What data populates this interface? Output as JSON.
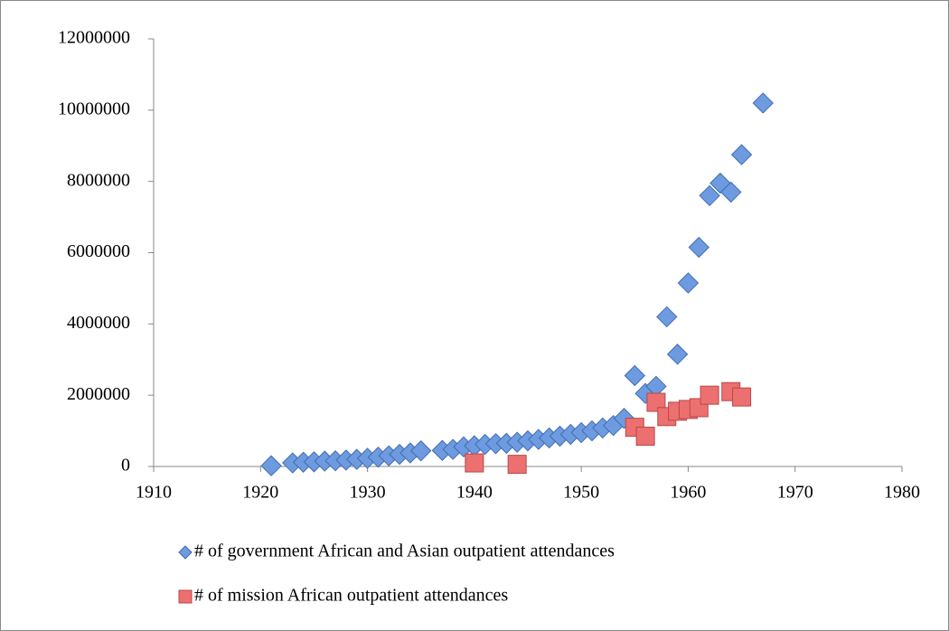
{
  "chart_data": {
    "type": "scatter",
    "xlim": [
      1910,
      1980
    ],
    "xticks": [
      1910,
      1920,
      1930,
      1940,
      1950,
      1960,
      1970,
      1980
    ],
    "ylim": [
      0,
      12000000
    ],
    "yticks": [
      0,
      2000000,
      4000000,
      6000000,
      8000000,
      10000000,
      12000000
    ],
    "grid": false,
    "legend": "bottom",
    "series": [
      {
        "name": "# of government African and Asian outpatient attendances",
        "color": "#6e9be0",
        "marker": "diamond",
        "x": [
          1921,
          1923,
          1924,
          1925,
          1926,
          1927,
          1928,
          1929,
          1930,
          1931,
          1932,
          1933,
          1934,
          1935,
          1937,
          1938,
          1939,
          1940,
          1941,
          1942,
          1943,
          1944,
          1945,
          1946,
          1947,
          1948,
          1949,
          1950,
          1951,
          1952,
          1953,
          1954,
          1955,
          1956,
          1957,
          1958,
          1959,
          1960,
          1961,
          1962,
          1963,
          1964,
          1965,
          1967
        ],
        "values": [
          20000,
          100000,
          120000,
          130000,
          150000,
          160000,
          180000,
          200000,
          230000,
          260000,
          300000,
          340000,
          380000,
          440000,
          450000,
          480000,
          550000,
          580000,
          620000,
          640000,
          650000,
          680000,
          720000,
          760000,
          800000,
          850000,
          900000,
          950000,
          1000000,
          1080000,
          1150000,
          1350000,
          2550000,
          2050000,
          2250000,
          4200000,
          3150000,
          5150000,
          6150000,
          7600000,
          7950000,
          7700000,
          8750000,
          10200000
        ]
      },
      {
        "name": "# of mission African outpatient attendances",
        "color": "#ec7070",
        "marker": "square",
        "x": [
          1940,
          1944,
          1955,
          1956,
          1957,
          1958,
          1959,
          1960,
          1961,
          1962,
          1964,
          1965
        ],
        "values": [
          100000,
          60000,
          1100000,
          850000,
          1800000,
          1400000,
          1550000,
          1600000,
          1650000,
          2000000,
          2100000,
          1950000
        ]
      }
    ]
  }
}
